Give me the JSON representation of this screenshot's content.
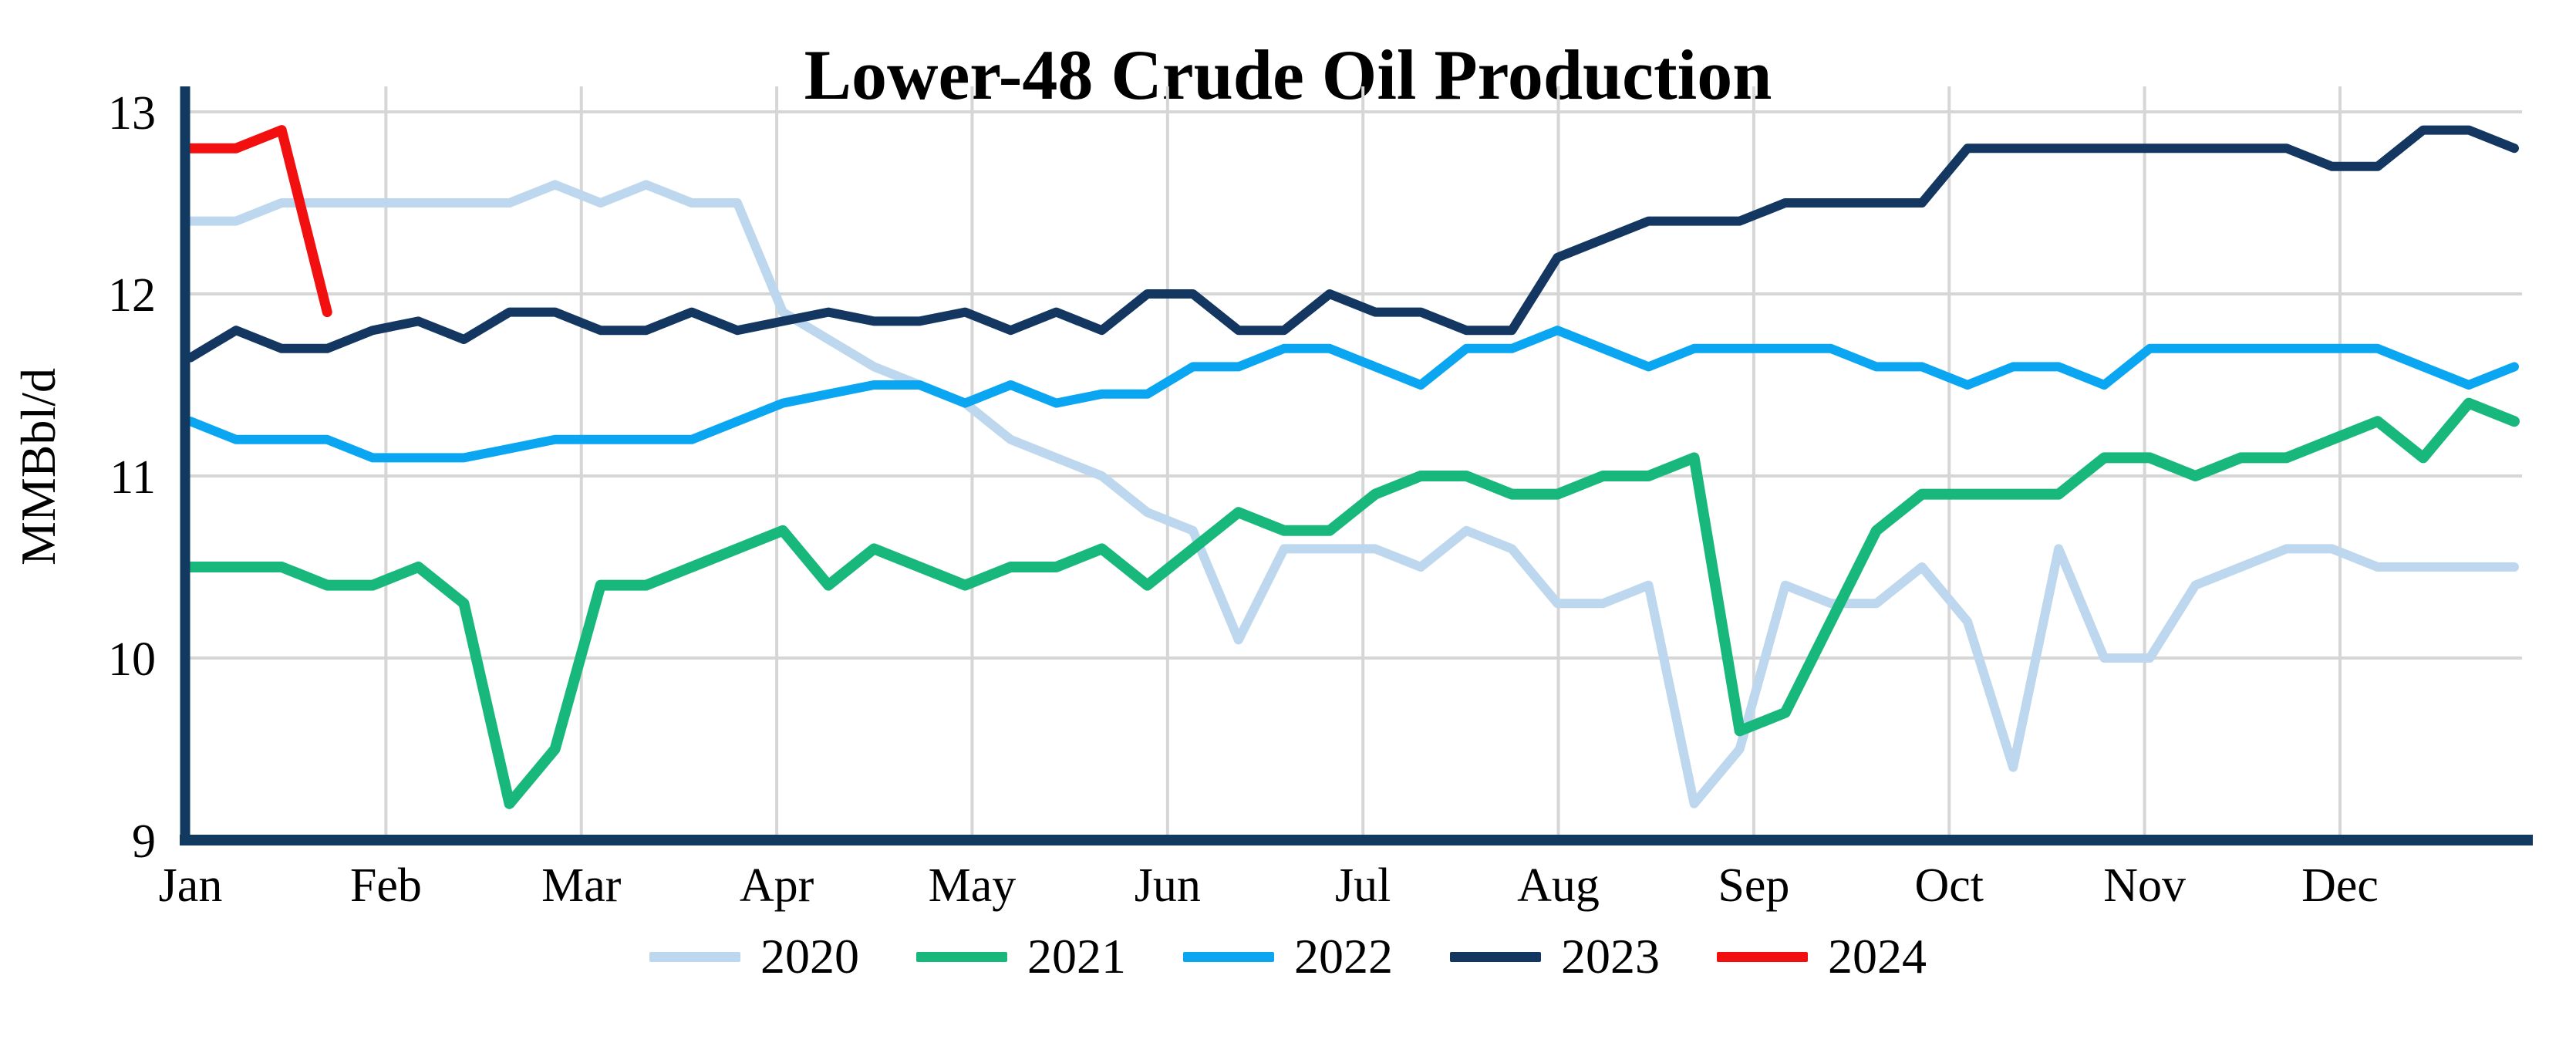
{
  "title": "Lower-48 Crude Oil Production",
  "chart_data": {
    "type": "line",
    "title": "Lower-48 Crude Oil Production",
    "xlabel": "",
    "ylabel": "MMBbl/d",
    "ylim": [
      9,
      13
    ],
    "yticks": [
      13,
      12,
      11,
      10,
      9
    ],
    "grid": true,
    "legend_position": "bottom",
    "x_unit": "week of year (weekly data, Jan-Dec)",
    "months": [
      "Jan",
      "Feb",
      "Mar",
      "Apr",
      "May",
      "Jun",
      "Jul",
      "Aug",
      "Sep",
      "Oct",
      "Nov",
      "Dec"
    ],
    "series": [
      {
        "name": "2020",
        "color": "#BDD7EE",
        "line_width": 12,
        "values": [
          12.4,
          12.4,
          12.5,
          12.5,
          12.5,
          12.5,
          12.5,
          12.5,
          12.6,
          12.5,
          12.6,
          12.5,
          12.5,
          11.9,
          11.75,
          11.6,
          11.5,
          11.4,
          11.2,
          11.1,
          11.0,
          10.8,
          10.7,
          10.1,
          10.6,
          10.6,
          10.6,
          10.5,
          10.7,
          10.6,
          10.3,
          10.3,
          10.4,
          9.2,
          9.5,
          10.4,
          10.3,
          10.3,
          10.5,
          10.2,
          9.4,
          10.6,
          10.0,
          10.0,
          10.4,
          10.5,
          10.6,
          10.6,
          10.5,
          10.5,
          10.5,
          10.5
        ]
      },
      {
        "name": "2021",
        "color": "#18B87D",
        "line_width": 14,
        "values": [
          10.5,
          10.5,
          10.5,
          10.4,
          10.4,
          10.5,
          10.3,
          9.2,
          9.5,
          10.4,
          10.4,
          10.5,
          10.6,
          10.7,
          10.4,
          10.6,
          10.5,
          10.4,
          10.5,
          10.5,
          10.6,
          10.4,
          10.6,
          10.8,
          10.7,
          10.7,
          10.9,
          11.0,
          11.0,
          10.9,
          10.9,
          11.0,
          11.0,
          11.1,
          9.6,
          9.7,
          10.2,
          10.7,
          10.9,
          10.9,
          10.9,
          10.9,
          11.1,
          11.1,
          11.0,
          11.1,
          11.1,
          11.2,
          11.3,
          11.1,
          11.4,
          11.3
        ]
      },
      {
        "name": "2022",
        "color": "#0BA6F2",
        "line_width": 12,
        "values": [
          11.3,
          11.2,
          11.2,
          11.2,
          11.1,
          11.1,
          11.1,
          11.15,
          11.2,
          11.2,
          11.2,
          11.2,
          11.3,
          11.4,
          11.45,
          11.5,
          11.5,
          11.4,
          11.5,
          11.4,
          11.45,
          11.45,
          11.6,
          11.6,
          11.7,
          11.7,
          11.6,
          11.5,
          11.7,
          11.7,
          11.8,
          11.7,
          11.6,
          11.7,
          11.7,
          11.7,
          11.7,
          11.6,
          11.6,
          11.5,
          11.6,
          11.6,
          11.5,
          11.7,
          11.7,
          11.7,
          11.7,
          11.7,
          11.7,
          11.6,
          11.5,
          11.6
        ]
      },
      {
        "name": "2023",
        "color": "#133760",
        "line_width": 12,
        "values": [
          11.65,
          11.8,
          11.7,
          11.7,
          11.8,
          11.85,
          11.75,
          11.9,
          11.9,
          11.8,
          11.8,
          11.9,
          11.8,
          11.85,
          11.9,
          11.85,
          11.85,
          11.9,
          11.8,
          11.9,
          11.8,
          12.0,
          12.0,
          11.8,
          11.8,
          12.0,
          11.9,
          11.9,
          11.8,
          11.8,
          12.2,
          12.3,
          12.4,
          12.4,
          12.4,
          12.5,
          12.5,
          12.5,
          12.5,
          12.8,
          12.8,
          12.8,
          12.8,
          12.8,
          12.8,
          12.8,
          12.8,
          12.7,
          12.7,
          12.9,
          12.9,
          12.8
        ]
      },
      {
        "name": "2024",
        "color": "#F20F0F",
        "line_width": 13,
        "values": [
          12.8,
          12.8,
          12.9,
          11.9
        ]
      }
    ]
  },
  "colors": {
    "axis": "#123A60",
    "gridline": "#D6D6D6",
    "text": "#000000",
    "background": "#FFFFFF"
  }
}
